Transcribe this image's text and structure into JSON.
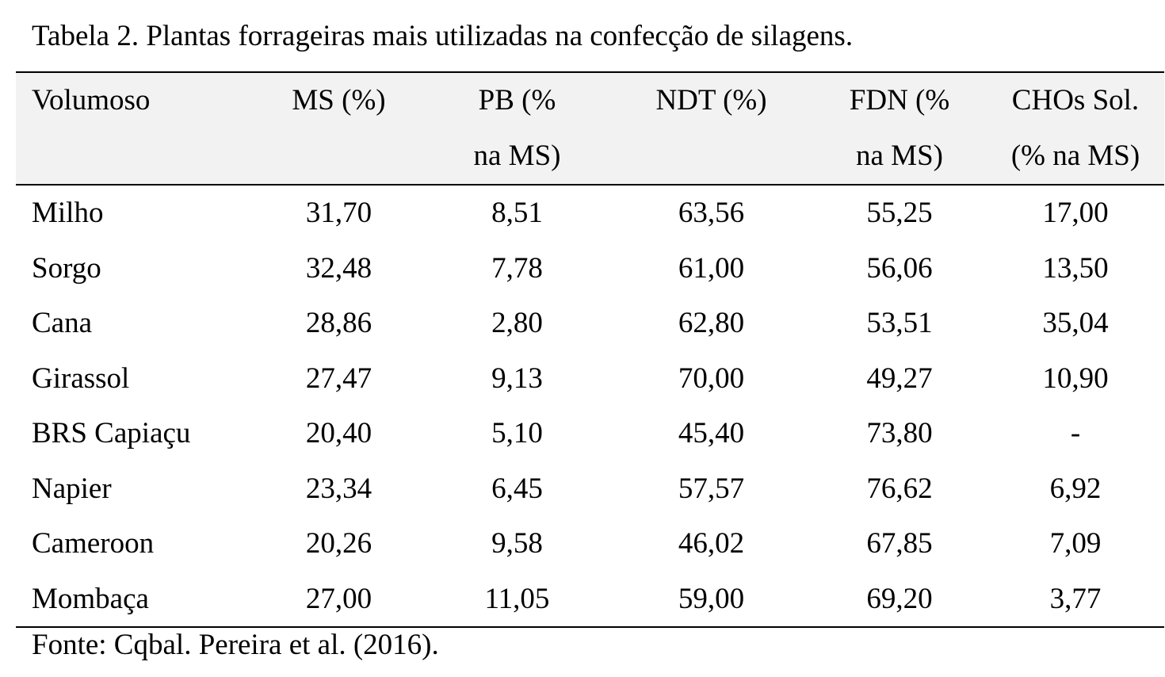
{
  "caption": "Tabela 2. Plantas forrageiras mais utilizadas na confecção de silagens.",
  "table": {
    "headers": [
      "Volumoso",
      "MS (%)",
      "PB (% na MS)",
      "NDT (%)",
      "FDN (% na MS)",
      "CHOs Sol. (% na MS)"
    ],
    "rows": [
      [
        "Milho",
        "31,70",
        "8,51",
        "63,56",
        "55,25",
        "17,00"
      ],
      [
        "Sorgo",
        "32,48",
        "7,78",
        "61,00",
        "56,06",
        "13,50"
      ],
      [
        "Cana",
        "28,86",
        "2,80",
        "62,80",
        "53,51",
        "35,04"
      ],
      [
        "Girassol",
        "27,47",
        "9,13",
        "70,00",
        "49,27",
        "10,90"
      ],
      [
        "BRS Capiaçu",
        "20,40",
        "5,10",
        "45,40",
        "73,80",
        "-"
      ],
      [
        "Napier",
        "23,34",
        "6,45",
        "57,57",
        "76,62",
        "6,92"
      ],
      [
        "Cameroon",
        "20,26",
        "9,58",
        "46,02",
        "67,85",
        "7,09"
      ],
      [
        "Mombaça",
        "27,00",
        "11,05",
        "59,00",
        "69,20",
        "3,77"
      ]
    ]
  },
  "source": "Fonte: Cqbal. Pereira et al. (2016)."
}
